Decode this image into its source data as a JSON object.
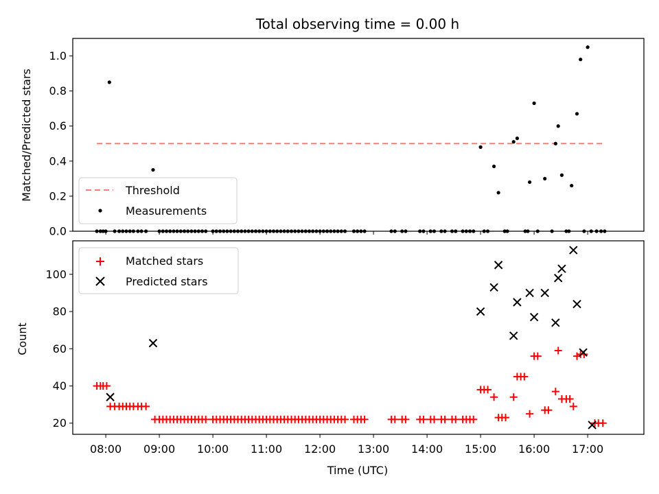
{
  "chart_data": [
    {
      "type": "scatter",
      "title": "Total observing time = 0.00 h",
      "xlabel": "",
      "ylabel": "Matched/Predicted stars",
      "ylim": [
        0,
        1.1
      ],
      "xlim": [
        "07:23",
        "18:03"
      ],
      "yticks": [
        "0.0",
        "0.2",
        "0.4",
        "0.6",
        "0.8",
        "1.0"
      ],
      "legend_position": "lower-left",
      "threshold": {
        "name": "Threshold",
        "value": 0.5,
        "x_range": [
          "07:50",
          "17:20"
        ],
        "color": "#ff7a7a",
        "style": "dashed"
      },
      "series": [
        {
          "name": "Measurements",
          "color": "#000000",
          "marker": "dot",
          "points": [
            [
              "07:50",
              0
            ],
            [
              "07:54",
              0
            ],
            [
              "07:57",
              0
            ],
            [
              "08:00",
              0
            ],
            [
              "08:04",
              0.85
            ],
            [
              "08:10",
              0
            ],
            [
              "08:15",
              0
            ],
            [
              "08:19",
              0
            ],
            [
              "08:23",
              0
            ],
            [
              "08:27",
              0
            ],
            [
              "08:31",
              0
            ],
            [
              "08:36",
              0
            ],
            [
              "08:40",
              0
            ],
            [
              "08:45",
              0
            ],
            [
              "08:53",
              0.35
            ],
            [
              "09:00",
              0
            ],
            [
              "09:04",
              0
            ],
            [
              "09:08",
              0
            ],
            [
              "09:12",
              0
            ],
            [
              "09:16",
              0
            ],
            [
              "09:20",
              0
            ],
            [
              "09:24",
              0
            ],
            [
              "09:28",
              0
            ],
            [
              "09:32",
              0
            ],
            [
              "09:36",
              0
            ],
            [
              "09:40",
              0
            ],
            [
              "09:44",
              0
            ],
            [
              "09:48",
              0
            ],
            [
              "09:52",
              0
            ],
            [
              "10:00",
              0
            ],
            [
              "10:04",
              0
            ],
            [
              "10:08",
              0
            ],
            [
              "10:12",
              0
            ],
            [
              "10:16",
              0
            ],
            [
              "10:20",
              0
            ],
            [
              "10:24",
              0
            ],
            [
              "10:28",
              0
            ],
            [
              "10:32",
              0
            ],
            [
              "10:36",
              0
            ],
            [
              "10:40",
              0
            ],
            [
              "10:44",
              0
            ],
            [
              "10:48",
              0
            ],
            [
              "10:52",
              0
            ],
            [
              "10:56",
              0
            ],
            [
              "11:00",
              0
            ],
            [
              "11:04",
              0
            ],
            [
              "11:08",
              0
            ],
            [
              "11:12",
              0
            ],
            [
              "11:16",
              0
            ],
            [
              "11:20",
              0
            ],
            [
              "11:24",
              0
            ],
            [
              "11:28",
              0
            ],
            [
              "11:32",
              0
            ],
            [
              "11:36",
              0
            ],
            [
              "11:40",
              0
            ],
            [
              "11:44",
              0
            ],
            [
              "11:48",
              0
            ],
            [
              "11:52",
              0
            ],
            [
              "11:56",
              0
            ],
            [
              "12:00",
              0
            ],
            [
              "12:04",
              0
            ],
            [
              "12:08",
              0
            ],
            [
              "12:12",
              0
            ],
            [
              "12:16",
              0
            ],
            [
              "12:20",
              0
            ],
            [
              "12:24",
              0
            ],
            [
              "12:28",
              0
            ],
            [
              "12:38",
              0
            ],
            [
              "12:42",
              0
            ],
            [
              "12:46",
              0
            ],
            [
              "12:50",
              0
            ],
            [
              "13:20",
              0
            ],
            [
              "13:24",
              0
            ],
            [
              "13:32",
              0
            ],
            [
              "13:36",
              0
            ],
            [
              "13:52",
              0
            ],
            [
              "13:56",
              0
            ],
            [
              "14:04",
              0
            ],
            [
              "14:08",
              0
            ],
            [
              "14:16",
              0
            ],
            [
              "14:20",
              0
            ],
            [
              "14:28",
              0
            ],
            [
              "14:32",
              0
            ],
            [
              "14:40",
              0
            ],
            [
              "14:44",
              0
            ],
            [
              "14:48",
              0
            ],
            [
              "14:52",
              0
            ],
            [
              "15:00",
              0.48
            ],
            [
              "15:04",
              0
            ],
            [
              "15:08",
              0
            ],
            [
              "15:15",
              0.37
            ],
            [
              "15:20",
              0.22
            ],
            [
              "15:27",
              0
            ],
            [
              "15:30",
              0
            ],
            [
              "15:37",
              0.51
            ],
            [
              "15:41",
              0.53
            ],
            [
              "15:50",
              0
            ],
            [
              "15:53",
              0
            ],
            [
              "15:55",
              0.28
            ],
            [
              "16:00",
              0.73
            ],
            [
              "16:04",
              0
            ],
            [
              "16:12",
              0.3
            ],
            [
              "16:20",
              0
            ],
            [
              "16:24",
              0.5
            ],
            [
              "16:27",
              0.6
            ],
            [
              "16:31",
              0.32
            ],
            [
              "16:36",
              0
            ],
            [
              "16:39",
              0
            ],
            [
              "16:42",
              0.26
            ],
            [
              "16:48",
              0.67
            ],
            [
              "16:52",
              0.98
            ],
            [
              "16:56",
              0
            ],
            [
              "17:00",
              1.05
            ],
            [
              "17:04",
              0
            ],
            [
              "17:10",
              0
            ],
            [
              "17:15",
              0
            ],
            [
              "17:19",
              0
            ]
          ]
        }
      ]
    },
    {
      "type": "scatter",
      "title": "",
      "xlabel": "Time (UTC)",
      "ylabel": "Count",
      "ylim": [
        14,
        118
      ],
      "xlim": [
        "07:23",
        "18:03"
      ],
      "yticks": [
        "20",
        "40",
        "60",
        "80",
        "100"
      ],
      "xticks": [
        "08:00",
        "09:00",
        "10:00",
        "11:00",
        "12:00",
        "13:00",
        "14:00",
        "15:00",
        "16:00",
        "17:00"
      ],
      "legend_position": "upper-left",
      "series": [
        {
          "name": "Matched stars",
          "color": "#ff0000",
          "marker": "plus",
          "points": [
            [
              "07:50",
              40
            ],
            [
              "07:54",
              40
            ],
            [
              "07:57",
              40
            ],
            [
              "08:01",
              40
            ],
            [
              "08:05",
              29
            ],
            [
              "08:10",
              29
            ],
            [
              "08:15",
              29
            ],
            [
              "08:19",
              29
            ],
            [
              "08:23",
              29
            ],
            [
              "08:27",
              29
            ],
            [
              "08:31",
              29
            ],
            [
              "08:36",
              29
            ],
            [
              "08:40",
              29
            ],
            [
              "08:45",
              29
            ],
            [
              "08:55",
              22
            ],
            [
              "09:00",
              22
            ],
            [
              "09:04",
              22
            ],
            [
              "09:08",
              22
            ],
            [
              "09:12",
              22
            ],
            [
              "09:16",
              22
            ],
            [
              "09:20",
              22
            ],
            [
              "09:24",
              22
            ],
            [
              "09:28",
              22
            ],
            [
              "09:32",
              22
            ],
            [
              "09:36",
              22
            ],
            [
              "09:40",
              22
            ],
            [
              "09:44",
              22
            ],
            [
              "09:48",
              22
            ],
            [
              "09:52",
              22
            ],
            [
              "10:00",
              22
            ],
            [
              "10:04",
              22
            ],
            [
              "10:08",
              22
            ],
            [
              "10:12",
              22
            ],
            [
              "10:16",
              22
            ],
            [
              "10:20",
              22
            ],
            [
              "10:24",
              22
            ],
            [
              "10:28",
              22
            ],
            [
              "10:32",
              22
            ],
            [
              "10:36",
              22
            ],
            [
              "10:40",
              22
            ],
            [
              "10:44",
              22
            ],
            [
              "10:48",
              22
            ],
            [
              "10:52",
              22
            ],
            [
              "10:56",
              22
            ],
            [
              "11:00",
              22
            ],
            [
              "11:04",
              22
            ],
            [
              "11:08",
              22
            ],
            [
              "11:12",
              22
            ],
            [
              "11:16",
              22
            ],
            [
              "11:20",
              22
            ],
            [
              "11:24",
              22
            ],
            [
              "11:28",
              22
            ],
            [
              "11:32",
              22
            ],
            [
              "11:36",
              22
            ],
            [
              "11:40",
              22
            ],
            [
              "11:44",
              22
            ],
            [
              "11:48",
              22
            ],
            [
              "11:52",
              22
            ],
            [
              "11:56",
              22
            ],
            [
              "12:00",
              22
            ],
            [
              "12:04",
              22
            ],
            [
              "12:08",
              22
            ],
            [
              "12:12",
              22
            ],
            [
              "12:16",
              22
            ],
            [
              "12:20",
              22
            ],
            [
              "12:24",
              22
            ],
            [
              "12:28",
              22
            ],
            [
              "12:38",
              22
            ],
            [
              "12:42",
              22
            ],
            [
              "12:46",
              22
            ],
            [
              "12:50",
              22
            ],
            [
              "13:20",
              22
            ],
            [
              "13:24",
              22
            ],
            [
              "13:32",
              22
            ],
            [
              "13:36",
              22
            ],
            [
              "13:52",
              22
            ],
            [
              "13:56",
              22
            ],
            [
              "14:04",
              22
            ],
            [
              "14:08",
              22
            ],
            [
              "14:16",
              22
            ],
            [
              "14:20",
              22
            ],
            [
              "14:28",
              22
            ],
            [
              "14:32",
              22
            ],
            [
              "14:40",
              22
            ],
            [
              "14:44",
              22
            ],
            [
              "14:48",
              22
            ],
            [
              "14:52",
              22
            ],
            [
              "15:00",
              38
            ],
            [
              "15:04",
              38
            ],
            [
              "15:08",
              38
            ],
            [
              "15:15",
              34
            ],
            [
              "15:20",
              23
            ],
            [
              "15:24",
              23
            ],
            [
              "15:28",
              23
            ],
            [
              "15:37",
              34
            ],
            [
              "15:41",
              45
            ],
            [
              "15:45",
              45
            ],
            [
              "15:49",
              45
            ],
            [
              "15:55",
              25
            ],
            [
              "16:00",
              56
            ],
            [
              "16:04",
              56
            ],
            [
              "16:12",
              27
            ],
            [
              "16:16",
              27
            ],
            [
              "16:24",
              37
            ],
            [
              "16:27",
              59
            ],
            [
              "16:31",
              33
            ],
            [
              "16:36",
              33
            ],
            [
              "16:40",
              33
            ],
            [
              "16:44",
              29
            ],
            [
              "16:48",
              56
            ],
            [
              "16:52",
              57
            ],
            [
              "16:56",
              57
            ],
            [
              "17:08",
              20
            ],
            [
              "17:12",
              20
            ],
            [
              "17:17",
              20
            ]
          ]
        },
        {
          "name": "Predicted stars",
          "color": "#000000",
          "marker": "x",
          "points": [
            [
              "08:05",
              34
            ],
            [
              "08:53",
              63
            ],
            [
              "15:00",
              80
            ],
            [
              "15:15",
              93
            ],
            [
              "15:20",
              105
            ],
            [
              "15:37",
              67
            ],
            [
              "15:41",
              85
            ],
            [
              "15:55",
              90
            ],
            [
              "16:00",
              77
            ],
            [
              "16:12",
              90
            ],
            [
              "16:24",
              74
            ],
            [
              "16:27",
              98
            ],
            [
              "16:31",
              103
            ],
            [
              "16:44",
              113
            ],
            [
              "16:48",
              84
            ],
            [
              "16:55",
              58
            ],
            [
              "17:05",
              19
            ]
          ]
        }
      ]
    }
  ]
}
